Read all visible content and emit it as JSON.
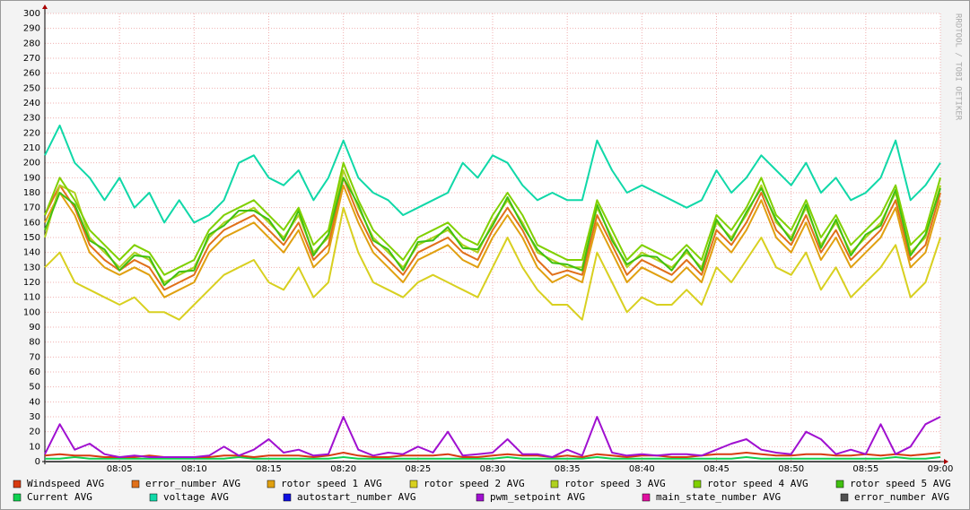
{
  "chart_data": {
    "type": "line",
    "watermark": "RRDTOOL / TOBI OETIKER",
    "x": [
      "08:00",
      "08:01",
      "08:02",
      "08:03",
      "08:04",
      "08:05",
      "08:06",
      "08:07",
      "08:08",
      "08:09",
      "08:10",
      "08:11",
      "08:12",
      "08:13",
      "08:14",
      "08:15",
      "08:16",
      "08:17",
      "08:18",
      "08:19",
      "08:20",
      "08:21",
      "08:22",
      "08:23",
      "08:24",
      "08:25",
      "08:26",
      "08:27",
      "08:28",
      "08:29",
      "08:30",
      "08:31",
      "08:32",
      "08:33",
      "08:34",
      "08:35",
      "08:36",
      "08:37",
      "08:38",
      "08:39",
      "08:40",
      "08:41",
      "08:42",
      "08:43",
      "08:44",
      "08:45",
      "08:46",
      "08:47",
      "08:48",
      "08:49",
      "08:50",
      "08:51",
      "08:52",
      "08:53",
      "08:54",
      "08:55",
      "08:56",
      "08:57",
      "08:58",
      "08:59",
      "09:00"
    ],
    "xlim": [
      "08:00",
      "09:00"
    ],
    "xticks": [
      "08:05",
      "08:10",
      "08:15",
      "08:20",
      "08:25",
      "08:30",
      "08:35",
      "08:40",
      "08:45",
      "08:50",
      "08:55",
      "09:00"
    ],
    "ylim": [
      0,
      300
    ],
    "yticks": [
      0,
      10,
      20,
      30,
      40,
      50,
      60,
      70,
      80,
      90,
      100,
      110,
      120,
      130,
      140,
      150,
      160,
      170,
      180,
      190,
      200,
      210,
      220,
      230,
      240,
      250,
      260,
      270,
      280,
      290,
      300
    ],
    "grid": true,
    "series": [
      {
        "name": "Windspeed AVG",
        "color": "#d83a10",
        "values": [
          4,
          5,
          4,
          4,
          3,
          3,
          3,
          4,
          3,
          3,
          3,
          3,
          4,
          4,
          3,
          4,
          4,
          4,
          3,
          4,
          6,
          4,
          3,
          3,
          4,
          4,
          4,
          5,
          3,
          3,
          4,
          5,
          4,
          4,
          3,
          4,
          3,
          5,
          4,
          3,
          4,
          4,
          3,
          3,
          4,
          5,
          5,
          6,
          5,
          4,
          4,
          5,
          5,
          4,
          4,
          5,
          4,
          5,
          4,
          5,
          6
        ]
      },
      {
        "name": "error_number AVG",
        "color": "#e0701a",
        "values": [
          165,
          185,
          170,
          145,
          135,
          128,
          135,
          130,
          115,
          120,
          125,
          145,
          155,
          160,
          165,
          155,
          145,
          160,
          135,
          145,
          190,
          165,
          145,
          135,
          125,
          140,
          145,
          150,
          140,
          135,
          155,
          170,
          155,
          135,
          125,
          128,
          125,
          165,
          145,
          125,
          135,
          130,
          125,
          135,
          125,
          155,
          145,
          160,
          180,
          155,
          145,
          165,
          140,
          155,
          135,
          145,
          155,
          175,
          135,
          145,
          180
        ]
      },
      {
        "name": "rotor speed 1 AVG",
        "color": "#e0a010",
        "values": [
          160,
          180,
          165,
          140,
          130,
          125,
          130,
          125,
          110,
          115,
          120,
          140,
          150,
          155,
          160,
          150,
          140,
          155,
          130,
          140,
          185,
          160,
          140,
          130,
          120,
          135,
          140,
          145,
          135,
          130,
          150,
          165,
          150,
          130,
          120,
          125,
          120,
          160,
          140,
          120,
          130,
          125,
          120,
          130,
          120,
          150,
          140,
          155,
          175,
          150,
          140,
          160,
          135,
          150,
          130,
          140,
          150,
          170,
          130,
          140,
          175
        ]
      },
      {
        "name": "rotor speed 2 AVG",
        "color": "#d8d020",
        "values": [
          130,
          140,
          120,
          115,
          110,
          105,
          110,
          100,
          100,
          95,
          105,
          115,
          125,
          130,
          135,
          120,
          115,
          130,
          110,
          120,
          170,
          140,
          120,
          115,
          110,
          120,
          125,
          120,
          115,
          110,
          130,
          150,
          130,
          115,
          105,
          105,
          95,
          140,
          120,
          100,
          110,
          105,
          105,
          115,
          105,
          130,
          120,
          135,
          150,
          130,
          125,
          140,
          115,
          130,
          110,
          120,
          130,
          145,
          110,
          120,
          150
        ]
      },
      {
        "name": "rotor speed 3 AVG",
        "color": "#b0d020",
        "values": [
          150,
          185,
          180,
          150,
          140,
          130,
          140,
          135,
          120,
          125,
          130,
          150,
          160,
          165,
          170,
          160,
          150,
          165,
          140,
          150,
          195,
          170,
          150,
          140,
          130,
          145,
          150,
          155,
          145,
          140,
          160,
          175,
          160,
          140,
          135,
          130,
          130,
          170,
          150,
          130,
          140,
          135,
          130,
          140,
          130,
          160,
          150,
          165,
          185,
          160,
          150,
          170,
          145,
          160,
          140,
          150,
          160,
          180,
          140,
          150,
          185
        ]
      },
      {
        "name": "rotor speed 4 AVG",
        "color": "#80d000",
        "values": [
          165,
          190,
          175,
          155,
          145,
          135,
          145,
          140,
          125,
          130,
          135,
          155,
          165,
          170,
          175,
          165,
          155,
          170,
          145,
          155,
          200,
          175,
          155,
          145,
          135,
          150,
          155,
          160,
          150,
          145,
          165,
          180,
          165,
          145,
          140,
          135,
          135,
          175,
          155,
          135,
          145,
          140,
          135,
          145,
          135,
          165,
          155,
          170,
          190,
          165,
          155,
          175,
          150,
          165,
          145,
          155,
          165,
          185,
          145,
          155,
          190
        ]
      },
      {
        "name": "rotor speed 5 AVG",
        "color": "#40c010",
        "values": [
          155,
          180,
          172,
          148,
          142,
          128,
          138,
          137,
          118,
          127,
          128,
          152,
          158,
          168,
          168,
          162,
          148,
          168,
          138,
          152,
          190,
          172,
          148,
          142,
          128,
          147,
          148,
          157,
          143,
          142,
          158,
          177,
          158,
          142,
          133,
          132,
          128,
          172,
          148,
          132,
          138,
          137,
          128,
          142,
          128,
          162,
          148,
          167,
          183,
          162,
          148,
          172,
          143,
          162,
          138,
          152,
          158,
          182,
          138,
          152,
          183
        ]
      },
      {
        "name": "Current AVG",
        "color": "#10d050",
        "values": [
          2,
          2,
          3,
          2,
          2,
          2,
          2,
          2,
          2,
          2,
          2,
          2,
          2,
          3,
          2,
          2,
          2,
          2,
          2,
          2,
          3,
          2,
          2,
          2,
          2,
          2,
          2,
          2,
          2,
          2,
          2,
          3,
          2,
          2,
          2,
          2,
          2,
          3,
          2,
          2,
          2,
          2,
          2,
          2,
          2,
          2,
          2,
          3,
          2,
          2,
          2,
          2,
          2,
          2,
          2,
          2,
          2,
          3,
          2,
          2,
          3
        ]
      },
      {
        "name": "voltage AVG",
        "color": "#10d8a8",
        "values": [
          205,
          225,
          200,
          190,
          175,
          190,
          170,
          180,
          160,
          175,
          160,
          165,
          175,
          200,
          205,
          190,
          185,
          195,
          175,
          190,
          215,
          190,
          180,
          175,
          165,
          170,
          175,
          180,
          200,
          190,
          205,
          200,
          185,
          175,
          180,
          175,
          175,
          215,
          195,
          180,
          185,
          180,
          175,
          170,
          175,
          195,
          180,
          190,
          205,
          195,
          185,
          200,
          180,
          190,
          175,
          180,
          190,
          215,
          175,
          185,
          200
        ]
      },
      {
        "name": "autostart_number AVG",
        "color": "#1010e0",
        "values": [
          0,
          0,
          0,
          0,
          0,
          0,
          0,
          0,
          0,
          0,
          0,
          0,
          0,
          0,
          0,
          0,
          0,
          0,
          0,
          0,
          0,
          0,
          0,
          0,
          0,
          0,
          0,
          0,
          0,
          0,
          0,
          0,
          0,
          0,
          0,
          0,
          0,
          0,
          0,
          0,
          0,
          0,
          0,
          0,
          0,
          0,
          0,
          0,
          0,
          0,
          0,
          0,
          0,
          0,
          0,
          0,
          0,
          0,
          0,
          0,
          0
        ]
      },
      {
        "name": "pwm_setpoint AVG",
        "color": "#a010d0",
        "values": [
          5,
          25,
          8,
          12,
          5,
          3,
          4,
          3,
          3,
          3,
          3,
          4,
          10,
          4,
          8,
          15,
          6,
          8,
          4,
          5,
          30,
          8,
          4,
          6,
          5,
          10,
          6,
          20,
          4,
          5,
          6,
          15,
          5,
          5,
          3,
          8,
          4,
          30,
          6,
          4,
          5,
          4,
          5,
          5,
          4,
          8,
          12,
          15,
          8,
          6,
          5,
          20,
          15,
          5,
          8,
          5,
          25,
          5,
          10,
          25,
          30
        ]
      },
      {
        "name": "main_state_number AVG",
        "color": "#e010a0",
        "values": [
          0,
          0,
          0,
          0,
          0,
          0,
          0,
          0,
          0,
          0,
          0,
          0,
          0,
          0,
          0,
          0,
          0,
          0,
          0,
          0,
          0,
          0,
          0,
          0,
          0,
          0,
          0,
          0,
          0,
          0,
          0,
          0,
          0,
          0,
          0,
          0,
          0,
          0,
          0,
          0,
          0,
          0,
          0,
          0,
          0,
          0,
          0,
          0,
          0,
          0,
          0,
          0,
          0,
          0,
          0,
          0,
          0,
          0,
          0,
          0,
          0
        ]
      },
      {
        "name": "error_number AVG",
        "color": "#505050",
        "values": [
          0,
          0,
          0,
          0,
          0,
          0,
          0,
          0,
          0,
          0,
          0,
          0,
          0,
          0,
          0,
          0,
          0,
          0,
          0,
          0,
          0,
          0,
          0,
          0,
          0,
          0,
          0,
          0,
          0,
          0,
          0,
          0,
          0,
          0,
          0,
          0,
          0,
          0,
          0,
          0,
          0,
          0,
          0,
          0,
          0,
          0,
          0,
          0,
          0,
          0,
          0,
          0,
          0,
          0,
          0,
          0,
          0,
          0,
          0,
          0,
          0
        ]
      }
    ]
  }
}
